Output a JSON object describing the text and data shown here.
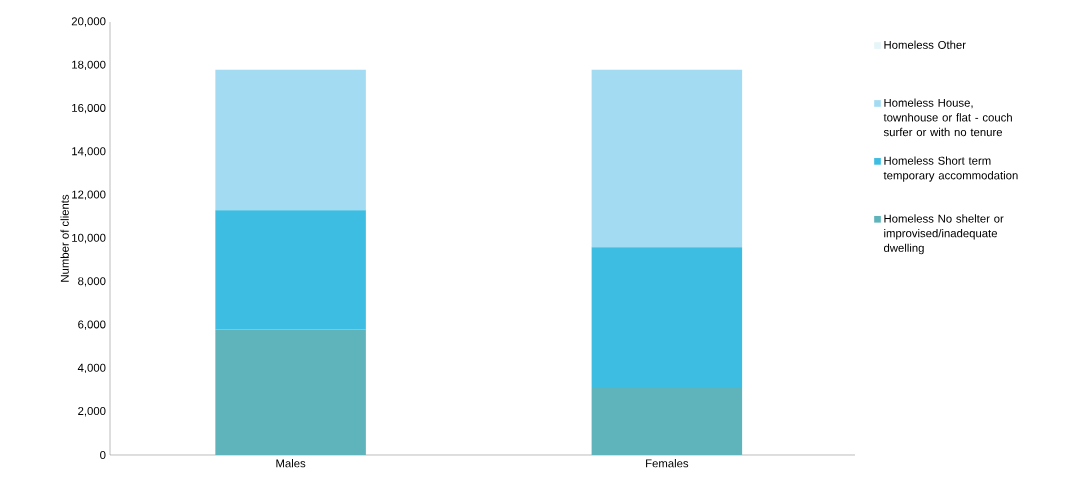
{
  "chart_data": {
    "type": "bar",
    "stacked": true,
    "ylabel": "Number of clients",
    "categories": [
      "Males",
      "Females"
    ],
    "series": [
      {
        "name": "Homeless No shelter or improvised/inadequate dwelling",
        "color": "#5fb3bb",
        "values": [
          5800,
          3100
        ]
      },
      {
        "name": "Homeless Short term temporary accommodation",
        "color": "#3ebde2",
        "values": [
          5500,
          6500
        ]
      },
      {
        "name": "Homeless House, townhouse or flat - couch surfer or with no tenure",
        "color": "#a3dbf3",
        "values": [
          6500,
          8200
        ]
      },
      {
        "name": "Homeless Other",
        "color": "#e6f5f8",
        "values": [
          0,
          0
        ]
      }
    ],
    "ylim": [
      0,
      20000
    ],
    "yticks": [
      {
        "value": 0,
        "label": "0"
      },
      {
        "value": 2000,
        "label": "2,000"
      },
      {
        "value": 4000,
        "label": "4,000"
      },
      {
        "value": 6000,
        "label": "6,000"
      },
      {
        "value": 8000,
        "label": "8,000"
      },
      {
        "value": 10000,
        "label": "10,000"
      },
      {
        "value": 12000,
        "label": "12,000"
      },
      {
        "value": 14000,
        "label": "14,000"
      },
      {
        "value": 16000,
        "label": "16,000"
      },
      {
        "value": 18000,
        "label": "18,000"
      },
      {
        "value": 20000,
        "label": "20,000"
      }
    ],
    "grid": false,
    "legend": "right"
  }
}
